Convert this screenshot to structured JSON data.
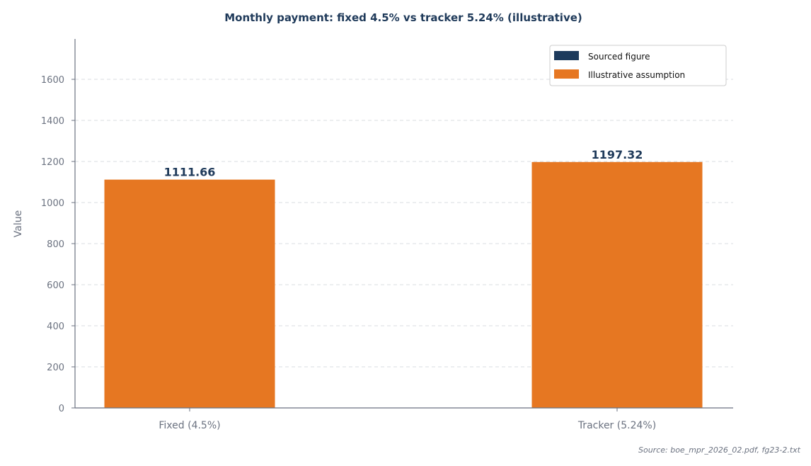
{
  "chart_data": {
    "type": "bar",
    "title": "Monthly payment: fixed 4.5% vs tracker 5.24% (illustrative)",
    "xlabel": "",
    "ylabel": "Value",
    "categories": [
      "Fixed (4.5%)",
      "Tracker (5.24%)"
    ],
    "values": [
      1111.66,
      1197.32
    ],
    "data_labels": [
      "1111.66",
      "1197.32"
    ],
    "bar_color": "#e67722",
    "ylim": [
      0,
      1800
    ],
    "yticks": [
      0,
      200,
      400,
      600,
      800,
      1000,
      1200,
      1400,
      1600
    ],
    "ytick_labels": [
      "0",
      "200",
      "400",
      "600",
      "800",
      "1000",
      "1200",
      "1400",
      "1600"
    ],
    "grid": "horizontal dashed",
    "legend": {
      "placement": "top-right",
      "entries": [
        {
          "label": "Sourced figure",
          "color": "#1c3a5c"
        },
        {
          "label": "Illustrative assumption",
          "color": "#e67722"
        }
      ]
    },
    "source_note": "Source: boe_mpr_2026_02.pdf, fg23-2.txt"
  }
}
